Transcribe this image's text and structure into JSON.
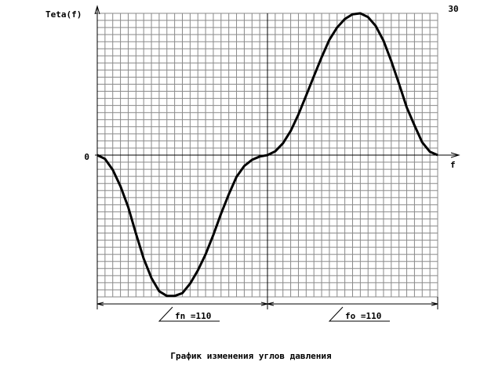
{
  "chart_data": {
    "type": "line",
    "y_label": "Teta(f)",
    "x_label": "f",
    "title": "График изменения углов давления",
    "annotations": [
      "fn =110",
      "fo =110"
    ],
    "x": [
      0,
      5,
      10,
      15,
      20,
      25,
      30,
      35,
      40,
      45,
      50,
      55,
      60,
      65,
      70,
      75,
      80,
      85,
      90,
      95,
      100,
      105,
      110,
      115,
      120,
      125,
      130,
      135,
      140,
      145,
      150,
      155,
      160,
      165,
      170,
      175,
      180,
      185,
      190,
      195,
      200,
      205,
      210,
      215,
      220
    ],
    "series": [
      {
        "color": "#000000",
        "values": [
          0,
          -0.8,
          -3.1,
          -6.6,
          -11,
          -16.6,
          -21.9,
          -26,
          -28.8,
          -29.8,
          -29.8,
          -29.2,
          -27.2,
          -24.4,
          -21,
          -16.9,
          -12.4,
          -8.3,
          -4.6,
          -2.3,
          -1,
          -0.3,
          0,
          0.8,
          2.5,
          5.1,
          8.6,
          12.6,
          16.7,
          20.7,
          24.4,
          27,
          28.8,
          29.8,
          30,
          29.2,
          27.3,
          24.2,
          19.9,
          15.1,
          10.1,
          6.3,
          2.7,
          0.7,
          0
        ]
      }
    ],
    "xlim": [
      0,
      220
    ],
    "ylim": [
      -30,
      30
    ],
    "yticks": [
      0,
      30
    ],
    "grid": true
  }
}
